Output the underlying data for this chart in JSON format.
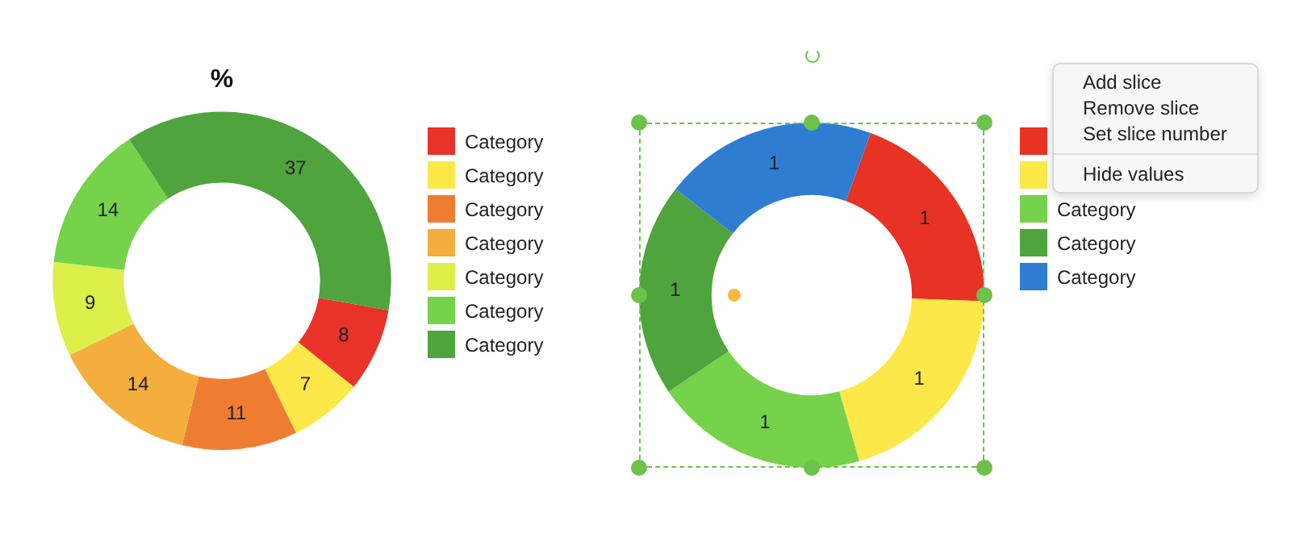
{
  "chart_data": [
    {
      "type": "donut",
      "title": "%",
      "categories": [
        "Category",
        "Category",
        "Category",
        "Category",
        "Category",
        "Category",
        "Category"
      ],
      "values": [
        8,
        7,
        11,
        14,
        9,
        14,
        37
      ],
      "colors": [
        "#e8322a",
        "#fde84a",
        "#ee7d32",
        "#f3ae3e",
        "#dcef4a",
        "#76d24a",
        "#4fa43e"
      ],
      "data_labels": true,
      "legend": "right"
    },
    {
      "type": "donut",
      "categories": [
        null,
        null,
        "Category",
        "Category",
        "Category"
      ],
      "values": [
        1,
        1,
        1,
        1,
        1
      ],
      "colors": [
        "#e83224",
        "#fde84a",
        "#76d24a",
        "#4fa43e",
        "#2f7dd1"
      ],
      "data_labels": true,
      "legend": "right",
      "annotations": [
        "Add slice",
        "Remove slice",
        "Set slice number",
        "Hide values"
      ]
    }
  ]
}
